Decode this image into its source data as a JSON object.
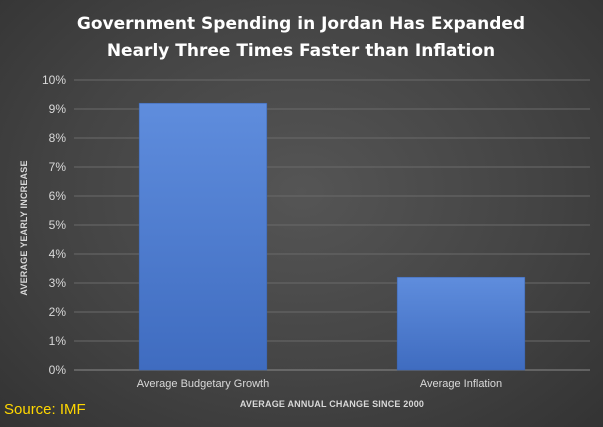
{
  "chart_data": {
    "type": "bar",
    "title_lines": [
      "Government Spending in Jordan Has Expanded",
      "Nearly Three Times Faster than Inflation"
    ],
    "categories": [
      "Average Budgetary Growth",
      "Average Inflation"
    ],
    "values": [
      9.2,
      3.2
    ],
    "unit": "%",
    "xlabel": "AVERAGE ANNUAL CHANGE SINCE 2000",
    "ylabel": "AVERAGE YEARLY INCREASE",
    "ylim": [
      0,
      10
    ],
    "yticks": [
      0,
      1,
      2,
      3,
      4,
      5,
      6,
      7,
      8,
      9,
      10
    ],
    "ytick_labels": [
      "0%",
      "1%",
      "2%",
      "3%",
      "4%",
      "5%",
      "6%",
      "7%",
      "8%",
      "9%",
      "10%"
    ],
    "grid": true,
    "bar_color": "#4472c4",
    "bar_color_light": "#5b8bd9"
  },
  "source": {
    "label": "Source: IMF",
    "color": "#ffd700"
  }
}
